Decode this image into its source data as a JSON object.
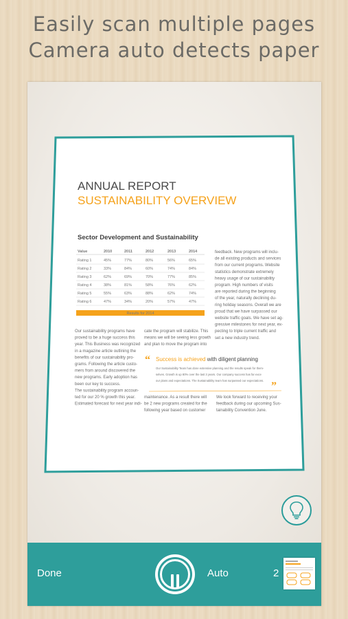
{
  "headline": {
    "line1": "Easily scan multiple pages",
    "line2": "Camera auto detects paper"
  },
  "document": {
    "title1": "ANNUAL REPORT",
    "title2": "SUSTAINABILITY OVERVIEW",
    "section": "Sector Development and Sustainability",
    "table_headers": [
      "Value",
      "2010",
      "2011",
      "2012",
      "2013",
      "2014"
    ],
    "table_rows": [
      [
        "Rating 1",
        "45%",
        "77%",
        "80%",
        "56%",
        "65%"
      ],
      [
        "Rating 2",
        "33%",
        "84%",
        "60%",
        "74%",
        "84%"
      ],
      [
        "Rating 3",
        "62%",
        "69%",
        "70%",
        "77%",
        "85%"
      ],
      [
        "Rating 4",
        "38%",
        "81%",
        "58%",
        "76%",
        "62%"
      ],
      [
        "Rating 5",
        "55%",
        "63%",
        "88%",
        "62%",
        "74%"
      ],
      [
        "Rating 6",
        "47%",
        "34%",
        "20%",
        "57%",
        "47%"
      ]
    ],
    "table_footer": "Results for 2014",
    "col1": [
      "Our sustainability programs have",
      "proved to be a huge success this",
      "year. This Business was recognized",
      "in a magazine article outlining the",
      "benefits of our sustainability pro-",
      "grams. Following the article custo-",
      "mers from around discovered the",
      "new programs. Early adoption has",
      "been our key to success.",
      "The sustainability program accoun-",
      "ted for our 20 % growth this year.",
      "Estimated forecast for next year indi-"
    ],
    "col2_top": [
      "cate the program will stabilize. This",
      "means we will be seeing less growth",
      "and plan to move the program into"
    ],
    "col3_top": [
      "feedback. New programs will inclu-",
      "de all existing products and services",
      "from our current programs. Website",
      "statistics demonstrate extremely",
      "heavy usage of our sustainability",
      "program. High numbers of visits",
      "are reported during the beginning",
      "of the year, naturally declining du-",
      "ring holiday seasons. Overall we are",
      "proud that we have surpassed our",
      "website traffic goals. We have set ag-",
      "gressive milestones for next year, ex-",
      "pecting to triple current traffic and",
      "set a new industry trend."
    ],
    "quote_highlight": "Success is achieved",
    "quote_rest": " with diligent planning",
    "quote_body": [
      "Our Sustainability Team has done extensive planning and the results speak for them-",
      "selves. Growth is up 80% over the last 3 years. Our company success has far exce",
      "our plans and expectations. The Sustainability team has surpassed our expectations."
    ],
    "col2_bottom": [
      "maintenance. As a result there will",
      "be 2 new programs created for the",
      "following year based on customer"
    ],
    "col3_bottom": [
      "We look forward to receiving your",
      "feedback during our upcoming Sus-",
      "tainability Convention June."
    ]
  },
  "toolbar": {
    "done_label": "Done",
    "mode_label": "Auto",
    "page_count": "2"
  },
  "colors": {
    "accent": "#2e9e9b",
    "orange": "#f5a21b"
  },
  "icons": {
    "flash": "lightbulb-icon",
    "capture": "pause-icon"
  }
}
